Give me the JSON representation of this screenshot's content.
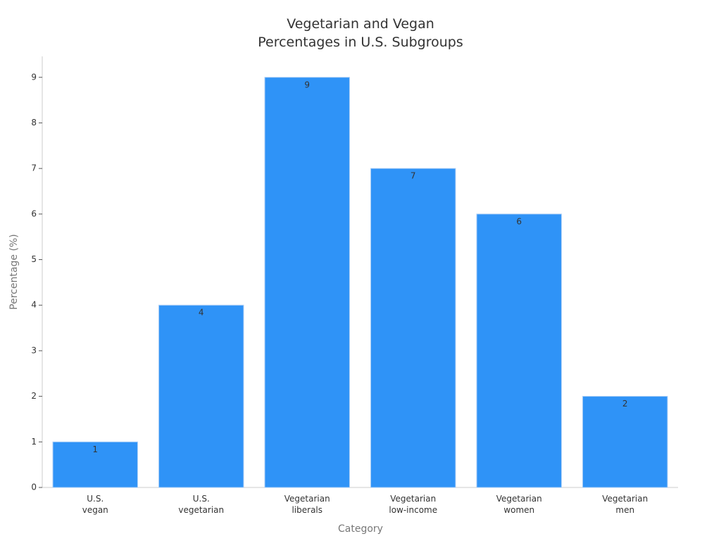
{
  "chart_data": {
    "type": "bar",
    "title": "Vegetarian and Vegan\nPercentages in U.S. Subgroups",
    "x_label": "Category",
    "y_label": "Percentage (%)",
    "categories": [
      "U.S.\nvegan",
      "U.S.\nvegetarian",
      "Vegetarian\nliberals",
      "Vegetarian\nlow-income",
      "Vegetarian\nwomen",
      "Vegetarian\nmen"
    ],
    "values": [
      1,
      4,
      9,
      7,
      6,
      2
    ],
    "color": "#2f93f7",
    "ylim": [
      0,
      9.46
    ],
    "yticks": [
      0,
      1,
      2,
      3,
      4,
      5,
      6,
      7,
      8,
      9
    ],
    "grid": false
  }
}
